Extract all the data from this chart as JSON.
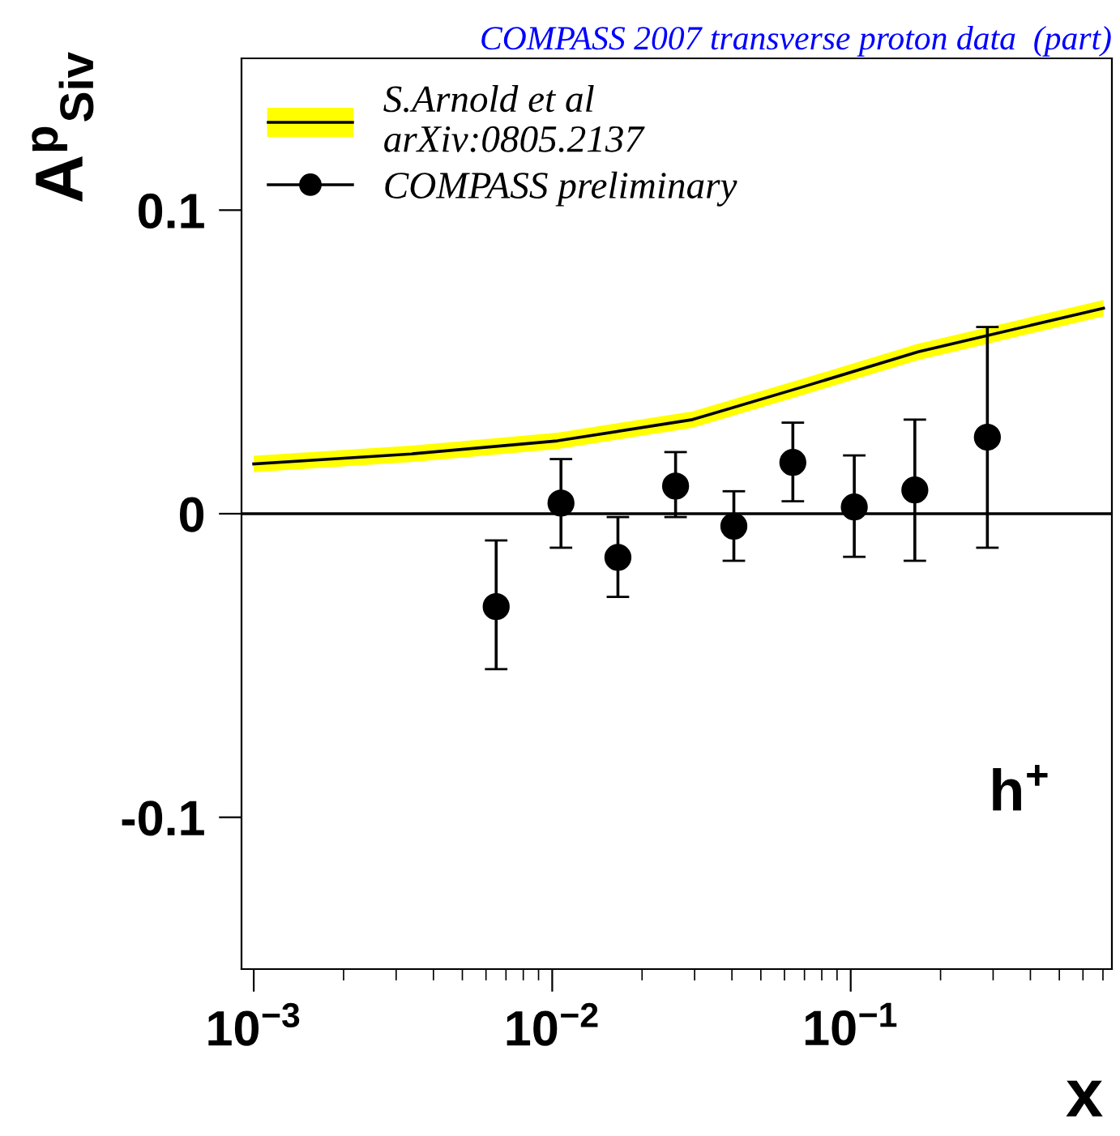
{
  "chart_data": {
    "type": "scatter",
    "title": "COMPASS 2007 transverse proton data  (part)",
    "xlabel": "x",
    "ylabel": "A$^{p}$$_{Siv}$",
    "annotations": [
      "h$^{+}$"
    ],
    "log": "x",
    "xlim": [
      0.00091,
      0.75
    ],
    "xticks": [
      {
        "value": 0.001,
        "label": "10$^{−3}$"
      },
      {
        "value": 0.01,
        "label": "10$^{−2}$"
      },
      {
        "value": 0.1,
        "label": "10$^{−1}$"
      }
    ],
    "ylim": [
      -0.15,
      0.15
    ],
    "yticks": [
      -0.1,
      0,
      0.1
    ],
    "ref_lines": [
      {
        "axis": "y",
        "value": 0,
        "color": "#000000"
      }
    ],
    "grid": false,
    "legend": "top left",
    "series": [
      {
        "name": "S.Arnold et al\narXiv:0805.2137",
        "type": "line",
        "color": "#000000",
        "x": [
          0.001,
          0.00337,
          0.0104,
          0.0295,
          0.0703,
          0.168,
          0.282,
          0.703
        ],
        "values": [
          0.0164,
          0.0197,
          0.024,
          0.031,
          0.042,
          0.0533,
          0.0585,
          0.0677
        ],
        "lower": [
          0.0137,
          0.017,
          0.0213,
          0.0283,
          0.0393,
          0.0506,
          0.0558,
          0.065
        ],
        "upper": [
          0.0191,
          0.0224,
          0.0267,
          0.0337,
          0.0447,
          0.056,
          0.0612,
          0.0704
        ]
      },
      {
        "name": "COMPASS preliminary",
        "color": "#000000",
        "marker": "circle",
        "x": [
          0.00649,
          0.0107,
          0.0166,
          0.0259,
          0.0406,
          0.064,
          0.1028,
          0.164,
          0.287
        ],
        "values": [
          -0.0306,
          0.0035,
          -0.0144,
          0.0091,
          -0.0041,
          0.0169,
          0.0022,
          0.0078,
          0.0252
        ],
        "errors": [
          [
            -0.0512,
            -0.0088
          ],
          [
            -0.0112,
            0.018
          ],
          [
            -0.0274,
            -0.0011
          ],
          [
            -0.0011,
            0.0203
          ],
          [
            -0.0155,
            0.0074
          ],
          [
            0.0041,
            0.03
          ],
          [
            -0.0142,
            0.0192
          ],
          [
            -0.0155,
            0.031
          ],
          [
            -0.0112,
            0.0615
          ]
        ]
      }
    ]
  }
}
